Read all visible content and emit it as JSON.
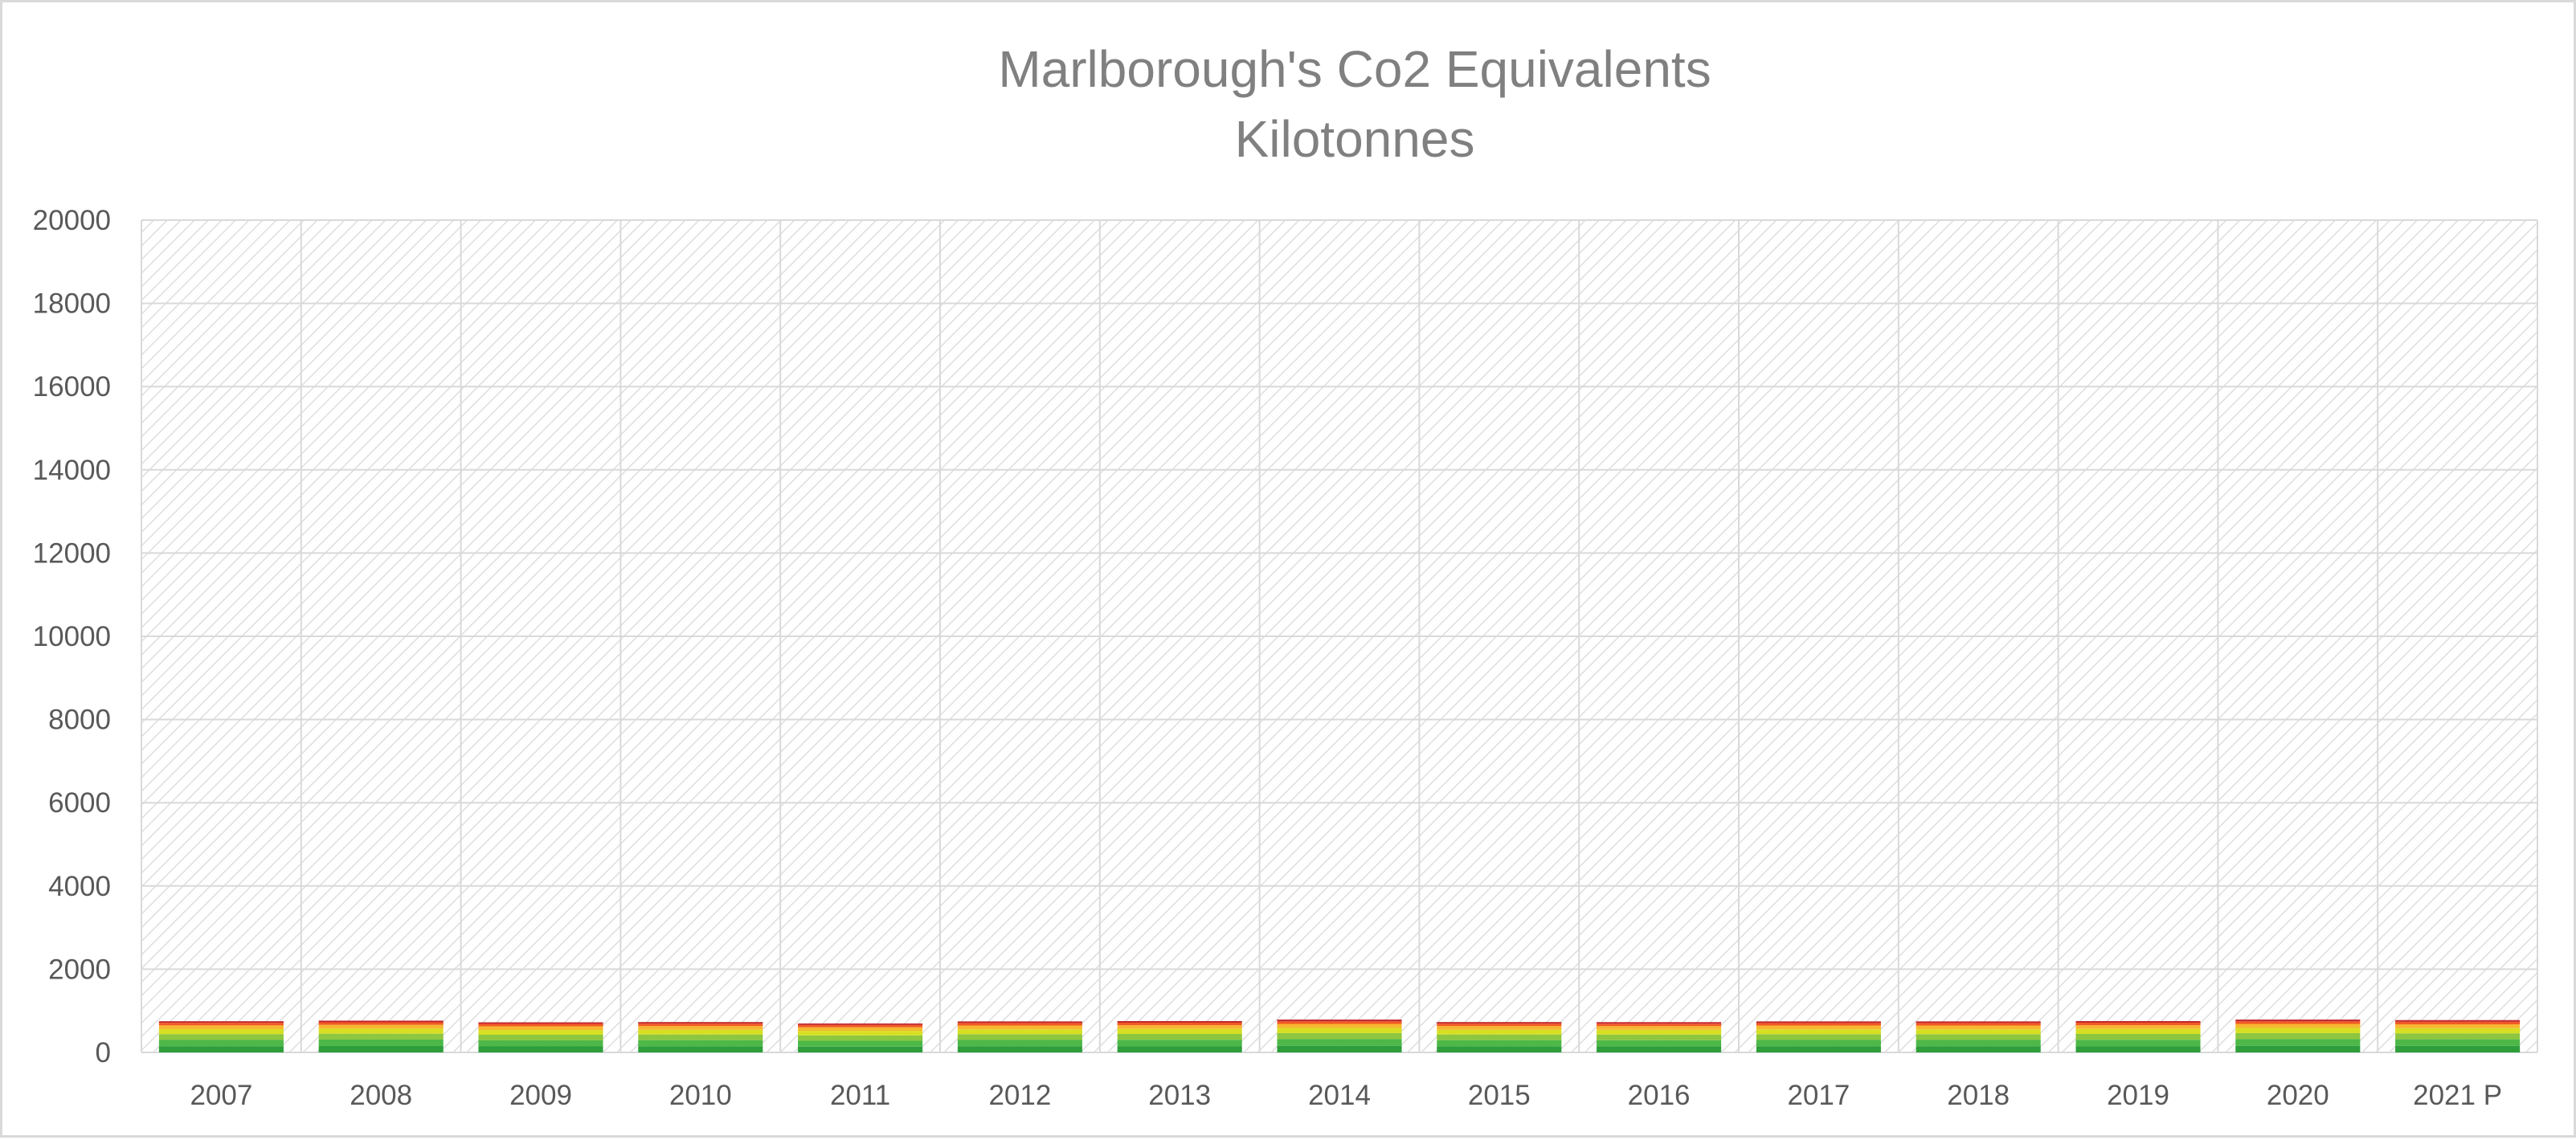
{
  "chart_data": {
    "type": "bar",
    "stacked": true,
    "title": "Marlborough's Co2 Equivalents",
    "subtitle": "Kilotonnes",
    "xlabel": "",
    "ylabel": "",
    "ylim": [
      0,
      20000
    ],
    "y_ticks": [
      "0",
      "2000",
      "4000",
      "6000",
      "8000",
      "10000",
      "12000",
      "14000",
      "16000",
      "18000",
      "20000"
    ],
    "grid": true,
    "legend": "none",
    "plot_background": "light gray diagonal hatch",
    "categories": [
      "2007",
      "2008",
      "2009",
      "2010",
      "2011",
      "2012",
      "2013",
      "2014",
      "2015",
      "2016",
      "2017",
      "2018",
      "2019",
      "2020",
      "2021 P"
    ],
    "series": [
      {
        "color": "#2e9e3b",
        "values": [
          150,
          155,
          145,
          148,
          140,
          150,
          152,
          160,
          148,
          147,
          150,
          150,
          152,
          160,
          158
        ]
      },
      {
        "color": "#4db848",
        "values": [
          150,
          155,
          145,
          148,
          140,
          150,
          152,
          160,
          148,
          147,
          150,
          150,
          152,
          160,
          158
        ]
      },
      {
        "color": "#8dc63f",
        "values": [
          140,
          140,
          135,
          135,
          130,
          138,
          140,
          145,
          135,
          135,
          138,
          138,
          140,
          145,
          143
        ]
      },
      {
        "color": "#d7df23",
        "values": [
          120,
          122,
          115,
          115,
          110,
          118,
          120,
          125,
          115,
          115,
          118,
          118,
          120,
          125,
          123
        ]
      },
      {
        "color": "#f7b731",
        "values": [
          90,
          92,
          88,
          88,
          85,
          90,
          90,
          95,
          88,
          88,
          90,
          90,
          90,
          95,
          93
        ]
      },
      {
        "color": "#f15a24",
        "values": [
          60,
          60,
          58,
          58,
          55,
          60,
          60,
          62,
          58,
          58,
          60,
          60,
          60,
          62,
          61
        ]
      },
      {
        "color": "#c1272d",
        "values": [
          40,
          40,
          38,
          38,
          36,
          40,
          40,
          42,
          38,
          38,
          40,
          40,
          40,
          42,
          41
        ]
      }
    ]
  }
}
